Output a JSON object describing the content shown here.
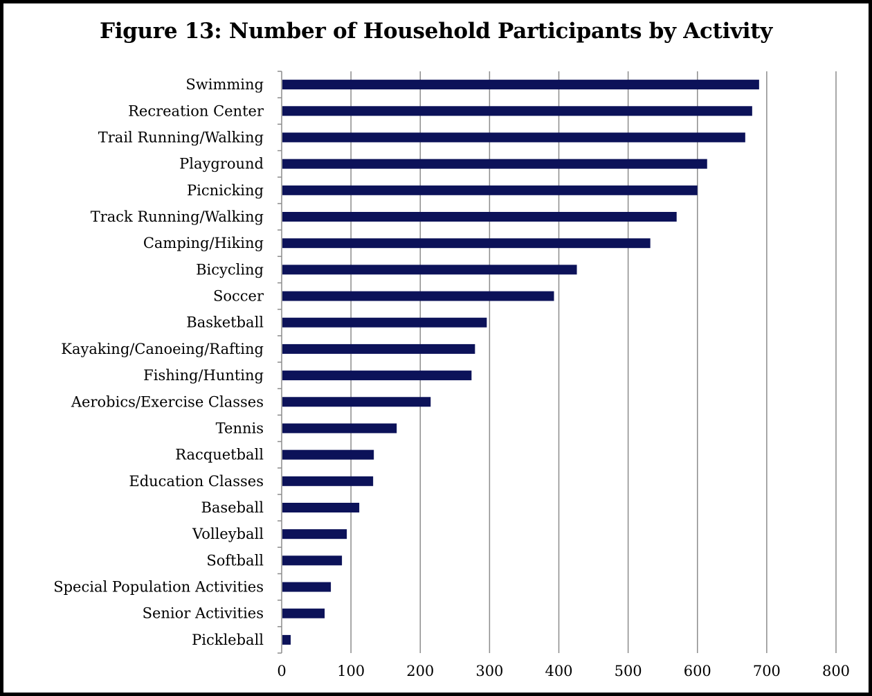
{
  "chart_data": {
    "type": "bar",
    "orientation": "horizontal",
    "title": "Figure 13:  Number of Household Participants by Activity",
    "categories": [
      "Swimming",
      "Recreation Center",
      "Trail Running/Walking",
      "Playground",
      "Picnicking",
      "Track Running/Walking",
      "Camping/Hiking",
      "Bicycling",
      "Soccer",
      "Basketball",
      "Kayaking/Canoeing/Rafting",
      "Fishing/Hunting",
      "Aerobics/Exercise Classes",
      "Tennis",
      "Racquetball",
      "Education Classes",
      "Baseball",
      "Volleyball",
      "Softball",
      "Special Population Activities",
      "Senior Activities",
      "Pickleball"
    ],
    "values": [
      689,
      679,
      669,
      614,
      600,
      570,
      532,
      426,
      393,
      296,
      279,
      274,
      215,
      166,
      133,
      132,
      112,
      94,
      87,
      71,
      62,
      13
    ],
    "xlim": [
      0,
      800
    ],
    "xticks": [
      0,
      100,
      200,
      300,
      400,
      500,
      600,
      700,
      800
    ],
    "xtick_labels": [
      "0",
      "100",
      "200",
      "300",
      "400",
      "500",
      "600",
      "700",
      "800"
    ],
    "grid": "vertical",
    "legend": "none",
    "bar_color": "#0c1259",
    "grid_color": "#8c8c8c"
  }
}
